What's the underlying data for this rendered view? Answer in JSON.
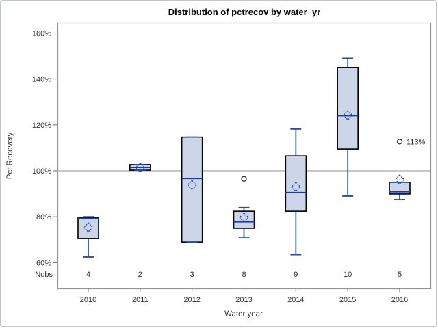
{
  "chart_data": {
    "type": "box",
    "title": "Distribution of pctrecov by water_yr",
    "xlabel": "Water year",
    "ylabel": "Pct Recovery",
    "nobs_label": "Nobs",
    "categories": [
      "2010",
      "2011",
      "2012",
      "2013",
      "2014",
      "2015",
      "2016"
    ],
    "nobs": [
      "4",
      "2",
      "3",
      "8",
      "9",
      "10",
      "5"
    ],
    "y_ticks": [
      {
        "value": 160,
        "label": "160%"
      },
      {
        "value": 140,
        "label": "140%"
      },
      {
        "value": 120,
        "label": "120%"
      },
      {
        "value": 100,
        "label": "100%"
      },
      {
        "value": 80,
        "label": "80%"
      },
      {
        "value": 60,
        "label": "60%"
      }
    ],
    "reference_line": 100,
    "layout": {
      "ylim": [
        48.8,
        164.6
      ],
      "grid": false,
      "legend": "none"
    },
    "boxes": [
      {
        "category": "2010",
        "nobs": 4,
        "whisker_low": 62.5,
        "q1": 70.5,
        "median": 79.2,
        "q3": 79.5,
        "whisker_high": 80,
        "mean": 75.4,
        "outliers": []
      },
      {
        "category": "2011",
        "nobs": 2,
        "whisker_low": 100.3,
        "q1": 100.3,
        "median": 101.5,
        "q3": 102.7,
        "whisker_high": 102.7,
        "mean": 101.4,
        "outliers": []
      },
      {
        "category": "2012",
        "nobs": 3,
        "whisker_low": 69,
        "q1": 69,
        "median": 96.7,
        "q3": 114.7,
        "whisker_high": 114.7,
        "mean": 93.8,
        "outliers": []
      },
      {
        "category": "2013",
        "nobs": 8,
        "whisker_low": 70.8,
        "q1": 75,
        "median": 77.8,
        "q3": 82.4,
        "whisker_high": 84,
        "mean": 79.7,
        "outliers": [
          {
            "value": 96.5,
            "label": ""
          }
        ]
      },
      {
        "category": "2014",
        "nobs": 9,
        "whisker_low": 63.5,
        "q1": 82.4,
        "median": 90.5,
        "q3": 106.5,
        "whisker_high": 118.2,
        "mean": 93,
        "outliers": []
      },
      {
        "category": "2015",
        "nobs": 10,
        "whisker_low": 89,
        "q1": 109.5,
        "median": 124,
        "q3": 145,
        "whisker_high": 149,
        "mean": 124.2,
        "outliers": []
      },
      {
        "category": "2016",
        "nobs": 5,
        "whisker_low": 87.5,
        "q1": 89.9,
        "median": 90.9,
        "q3": 95,
        "whisker_high": 95,
        "mean": 96.2,
        "outliers": [
          {
            "value": 112.7,
            "label": "113%"
          }
        ]
      }
    ],
    "colors": {
      "box_fill": "#ccd6e8",
      "box_border": "#000000",
      "median": "#1c3aa5",
      "whisker": "#2449a8",
      "mean_marker": "#2449a8",
      "outlier": "#333333",
      "reference_line": "#a8a8a8",
      "axis": "#949494",
      "tick": "#6a6a6a",
      "text": "#333333"
    }
  }
}
